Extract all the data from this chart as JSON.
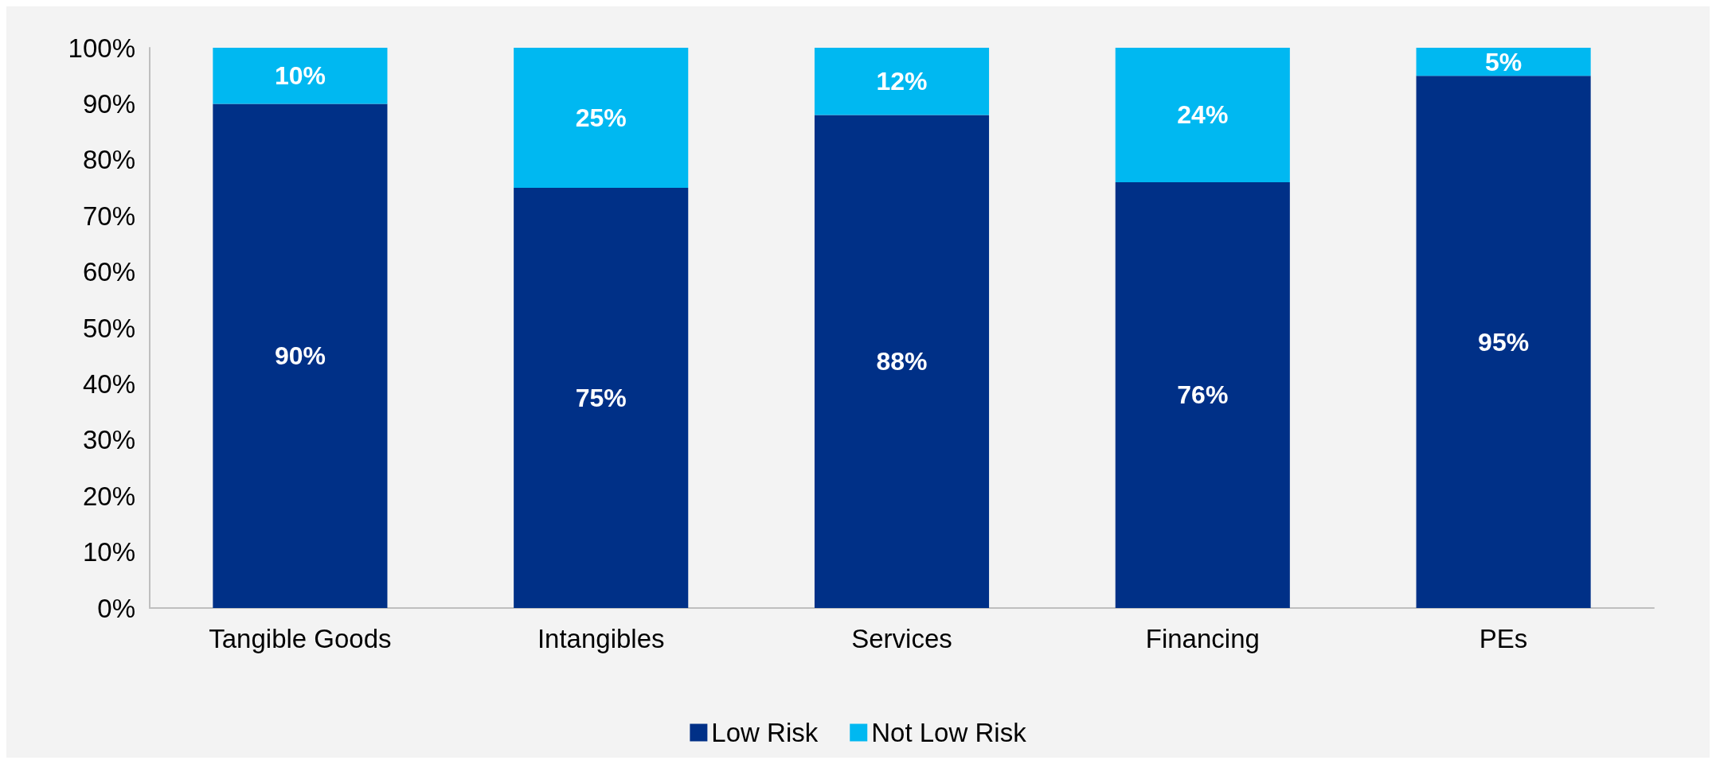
{
  "chart_data": {
    "type": "bar",
    "stacked": true,
    "categories": [
      "Tangible Goods",
      "Intangibles",
      "Services",
      "Financing",
      "PEs"
    ],
    "series": [
      {
        "name": "Low Risk",
        "color": "#003087",
        "values": [
          90,
          75,
          88,
          76,
          95
        ],
        "value_labels": [
          "90%",
          "75%",
          "88%",
          "76%",
          "95%"
        ]
      },
      {
        "name": "Not Low Risk",
        "color": "#00b8f1",
        "values": [
          10,
          25,
          12,
          24,
          5
        ],
        "value_labels": [
          "10%",
          "25%",
          "12%",
          "24%",
          "5%"
        ]
      }
    ],
    "ylim": [
      0,
      100
    ],
    "yticks": [
      {
        "value": 0,
        "label": "0%"
      },
      {
        "value": 10,
        "label": "10%"
      },
      {
        "value": 20,
        "label": "20%"
      },
      {
        "value": 30,
        "label": "30%"
      },
      {
        "value": 40,
        "label": "40%"
      },
      {
        "value": 50,
        "label": "50%"
      },
      {
        "value": 60,
        "label": "60%"
      },
      {
        "value": 70,
        "label": "70%"
      },
      {
        "value": 80,
        "label": "80%"
      },
      {
        "value": 90,
        "label": "90%"
      },
      {
        "value": 100,
        "label": "100%"
      }
    ],
    "legend": "bottom"
  }
}
